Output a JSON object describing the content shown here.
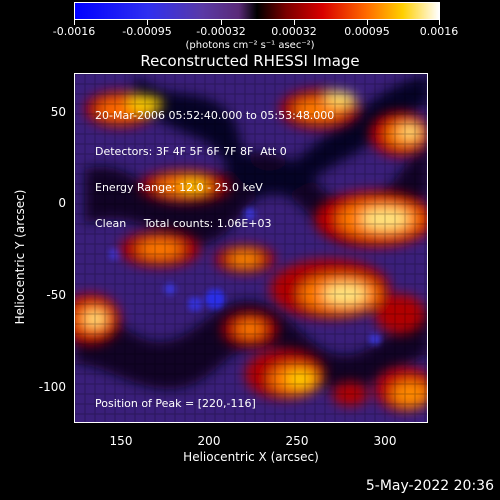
{
  "colorbar": {
    "ticks": [
      "-0.0016",
      "-0.00095",
      "-0.00032",
      "0.00032",
      "0.00095",
      "0.0016"
    ],
    "units": "(photons cm⁻² s⁻¹ asec⁻²)"
  },
  "title": "Reconstructed RHESSI Image",
  "info_lines": [
    "20-Mar-2006 05:52:40.000 to 05:53:48.000",
    "Detectors: 3F 4F 5F 6F 7F 8F  Att 0",
    "Energy Range: 12.0 - 25.0 keV",
    "Clean     Total counts: 1.06E+03"
  ],
  "peak_text": "Position of Peak = [220,-116]",
  "axes": {
    "x_label": "Heliocentric X (arcsec)",
    "y_label": "Heliocentric Y (arcsec)",
    "x_ticks": [
      "150",
      "200",
      "250",
      "300"
    ],
    "y_ticks": [
      "50",
      "0",
      "-50",
      "-100"
    ]
  },
  "footer_date": "5-May-2022 20:36"
}
